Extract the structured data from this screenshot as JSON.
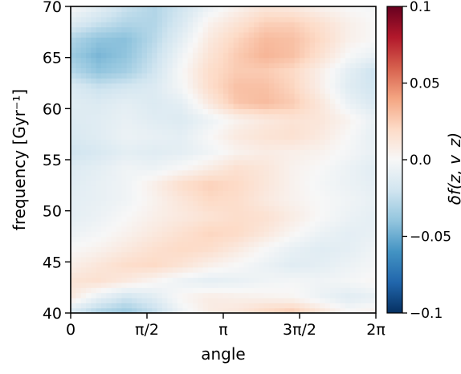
{
  "chart_data": {
    "type": "heatmap",
    "title": "",
    "xlabel": "angle",
    "ylabel": "frequency [Gyr⁻¹]",
    "colorbar_label": "δf(z, v_z)",
    "xlim": [
      0,
      6.283185
    ],
    "ylim": [
      40,
      70
    ],
    "x_ticks": [
      {
        "value": 0,
        "label": "0"
      },
      {
        "value": 1.570796,
        "label": "π/2"
      },
      {
        "value": 3.141593,
        "label": "π"
      },
      {
        "value": 4.712389,
        "label": "3π/2"
      },
      {
        "value": 6.283185,
        "label": "2π"
      }
    ],
    "y_ticks": [
      {
        "value": 40,
        "label": "40"
      },
      {
        "value": 45,
        "label": "45"
      },
      {
        "value": 50,
        "label": "50"
      },
      {
        "value": 55,
        "label": "55"
      },
      {
        "value": 60,
        "label": "60"
      },
      {
        "value": 65,
        "label": "65"
      },
      {
        "value": 70,
        "label": "70"
      }
    ],
    "colorbar_ticks": [
      {
        "value": 0.1,
        "label": "0.1"
      },
      {
        "value": 0.05,
        "label": "0.05"
      },
      {
        "value": 0.0,
        "label": "0.0"
      },
      {
        "value": -0.05,
        "label": "−0.05"
      },
      {
        "value": -0.1,
        "label": "−0.1"
      }
    ],
    "vlim": [
      -0.1,
      0.1
    ],
    "colormap": "RdBu_r",
    "colormap_stops": [
      "#053061",
      "#2166ac",
      "#4393c3",
      "#92c5de",
      "#d1e5f0",
      "#f7f7f7",
      "#fddbc7",
      "#f4a582",
      "#d6604d",
      "#b2182b",
      "#67001f"
    ],
    "grid": false,
    "z_rows_bottom_to_top": [
      [
        -0.018,
        -0.032,
        -0.038,
        -0.025,
        -0.005,
        0.008,
        0.012,
        0.022,
        0.028,
        0.015,
        0.002,
        0.006
      ],
      [
        0.01,
        -0.008,
        -0.02,
        -0.012,
        0.002,
        0.008,
        0.006,
        0.004,
        0.002,
        -0.006,
        -0.012,
        -0.008
      ],
      [
        0.014,
        0.016,
        0.01,
        0.002,
        -0.006,
        -0.01,
        -0.008,
        -0.004,
        -0.002,
        -0.004,
        -0.002,
        0.002
      ],
      [
        0.006,
        0.012,
        0.018,
        0.02,
        0.014,
        0.006,
        0.0,
        -0.006,
        -0.012,
        -0.01,
        -0.006,
        -0.002
      ],
      [
        0.0,
        0.004,
        0.01,
        0.016,
        0.02,
        0.018,
        0.01,
        0.0,
        -0.008,
        -0.012,
        -0.01,
        -0.004
      ],
      [
        -0.006,
        -0.002,
        0.004,
        0.01,
        0.016,
        0.022,
        0.02,
        0.012,
        0.002,
        -0.006,
        -0.01,
        -0.008
      ],
      [
        -0.01,
        -0.006,
        0.0,
        0.006,
        0.01,
        0.014,
        0.018,
        0.016,
        0.008,
        0.0,
        -0.006,
        -0.01
      ],
      [
        -0.01,
        -0.008,
        -0.004,
        0.004,
        0.012,
        0.02,
        0.018,
        0.01,
        0.004,
        0.0,
        -0.004,
        -0.008
      ],
      [
        -0.012,
        -0.008,
        -0.004,
        0.006,
        0.018,
        0.024,
        0.02,
        0.012,
        0.004,
        -0.002,
        -0.006,
        -0.01
      ],
      [
        -0.014,
        -0.01,
        -0.004,
        -0.006,
        0.0,
        0.008,
        0.016,
        0.012,
        0.004,
        0.0,
        -0.006,
        -0.012
      ],
      [
        -0.02,
        -0.016,
        -0.01,
        -0.012,
        -0.01,
        -0.004,
        0.004,
        0.008,
        0.006,
        0.004,
        -0.002,
        -0.008
      ],
      [
        -0.016,
        -0.012,
        -0.006,
        -0.008,
        -0.01,
        0.0,
        0.01,
        0.014,
        0.016,
        0.01,
        0.0,
        -0.01
      ],
      [
        -0.014,
        -0.012,
        -0.008,
        -0.012,
        -0.014,
        -0.006,
        0.004,
        0.01,
        0.014,
        0.012,
        0.004,
        -0.008
      ],
      [
        -0.012,
        -0.014,
        -0.01,
        -0.014,
        -0.01,
        0.01,
        0.028,
        0.032,
        0.026,
        0.012,
        -0.006,
        -0.016
      ],
      [
        -0.014,
        -0.022,
        -0.018,
        -0.014,
        -0.002,
        0.018,
        0.03,
        0.03,
        0.022,
        0.006,
        -0.012,
        -0.02
      ],
      [
        -0.028,
        -0.04,
        -0.034,
        -0.02,
        0.0,
        0.018,
        0.026,
        0.026,
        0.02,
        0.006,
        -0.01,
        -0.022
      ],
      [
        -0.036,
        -0.046,
        -0.04,
        -0.024,
        -0.004,
        0.014,
        0.026,
        0.034,
        0.03,
        0.016,
        0.0,
        -0.008
      ],
      [
        -0.03,
        -0.04,
        -0.042,
        -0.028,
        -0.01,
        0.01,
        0.022,
        0.032,
        0.03,
        0.02,
        0.006,
        0.0
      ],
      [
        -0.012,
        -0.022,
        -0.03,
        -0.03,
        -0.016,
        0.004,
        0.014,
        0.024,
        0.024,
        0.016,
        0.006,
        0.0
      ],
      [
        0.0,
        -0.01,
        -0.022,
        -0.03,
        -0.02,
        -0.006,
        0.004,
        0.012,
        0.01,
        0.004,
        0.0,
        -0.002
      ]
    ]
  }
}
